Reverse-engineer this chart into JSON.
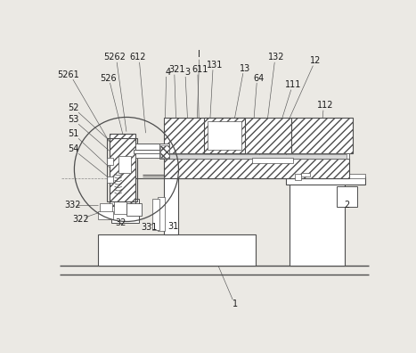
{
  "bg_color": "#ebe9e4",
  "lc": "#4d4d4d",
  "fig_w": 4.67,
  "fig_h": 3.96,
  "dpi": 100,
  "lw": 0.75,
  "fs": 7.0,
  "labels": [
    [
      "I",
      213,
      18
    ],
    [
      "1",
      265,
      381
    ],
    [
      "2",
      428,
      237
    ],
    [
      "12",
      382,
      27
    ],
    [
      "13",
      280,
      38
    ],
    [
      "64",
      300,
      52
    ],
    [
      "111",
      350,
      62
    ],
    [
      "112",
      397,
      92
    ],
    [
      "131",
      236,
      33
    ],
    [
      "132",
      326,
      22
    ],
    [
      "3",
      196,
      43
    ],
    [
      "4",
      168,
      43
    ],
    [
      "321",
      180,
      40
    ],
    [
      "611",
      214,
      40
    ],
    [
      "52",
      30,
      95
    ],
    [
      "53",
      30,
      112
    ],
    [
      "51",
      30,
      133
    ],
    [
      "54",
      30,
      155
    ],
    [
      "526",
      80,
      52
    ],
    [
      "5261",
      22,
      47
    ],
    [
      "5262",
      90,
      22
    ],
    [
      "612",
      123,
      22
    ],
    [
      "332",
      28,
      237
    ],
    [
      "322",
      40,
      258
    ],
    [
      "32",
      98,
      263
    ],
    [
      "331",
      140,
      270
    ],
    [
      "31",
      175,
      268
    ]
  ],
  "leader_lines": [
    [
      213,
      25,
      210,
      120
    ],
    [
      262,
      375,
      230,
      300
    ],
    [
      425,
      240,
      430,
      230
    ],
    [
      379,
      34,
      345,
      110
    ],
    [
      277,
      45,
      264,
      115
    ],
    [
      297,
      59,
      291,
      135
    ],
    [
      347,
      69,
      328,
      130
    ],
    [
      394,
      99,
      388,
      168
    ],
    [
      233,
      40,
      228,
      130
    ],
    [
      323,
      29,
      313,
      110
    ],
    [
      193,
      50,
      197,
      130
    ],
    [
      165,
      50,
      163,
      132
    ],
    [
      177,
      47,
      180,
      132
    ],
    [
      211,
      47,
      213,
      130
    ],
    [
      37,
      102,
      82,
      143
    ],
    [
      37,
      119,
      82,
      158
    ],
    [
      37,
      140,
      82,
      182
    ],
    [
      37,
      162,
      82,
      198
    ],
    [
      83,
      59,
      105,
      147
    ],
    [
      29,
      54,
      82,
      145
    ],
    [
      93,
      29,
      107,
      130
    ],
    [
      126,
      29,
      135,
      132
    ],
    [
      35,
      237,
      65,
      237
    ],
    [
      47,
      255,
      67,
      248
    ],
    [
      101,
      260,
      108,
      248
    ],
    [
      143,
      267,
      152,
      253
    ],
    [
      178,
      265,
      167,
      252
    ]
  ]
}
